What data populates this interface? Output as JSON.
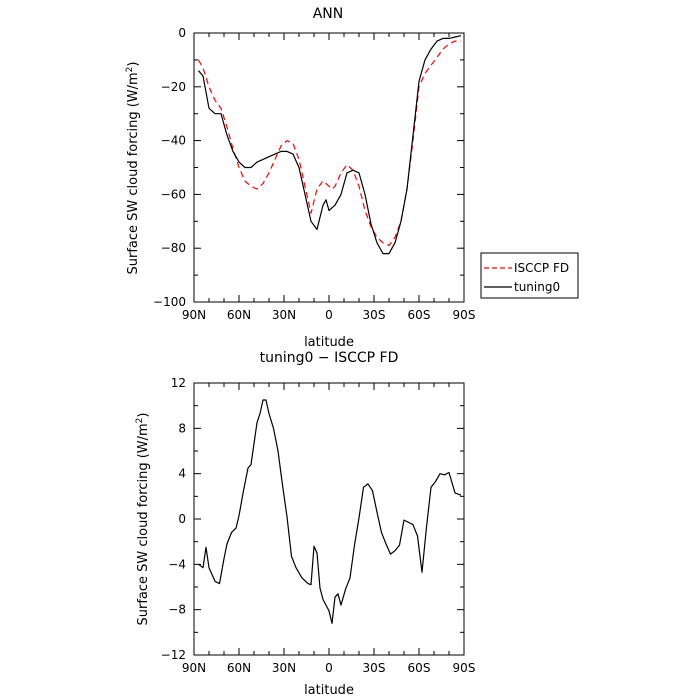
{
  "chart_data": [
    {
      "type": "line",
      "title": "ANN",
      "xlabel": "latitude",
      "ylabel": "Surface SW cloud forcing (W/m",
      "ylabel_superscript": "2",
      "ylabel_suffix": ")",
      "xlim": [
        90,
        -90
      ],
      "ylim": [
        -100,
        0
      ],
      "x_ticks": [
        90,
        60,
        30,
        0,
        -30,
        -60,
        -90
      ],
      "x_tick_labels": [
        "90N",
        "60N",
        "30N",
        "0",
        "30S",
        "60S",
        "90S"
      ],
      "y_ticks": [
        0,
        -20,
        -40,
        -60,
        -80,
        -100
      ],
      "y_tick_labels": [
        "0",
        "−20",
        "−40",
        "−60",
        "−80",
        "−100"
      ],
      "legend_position": "right",
      "series": [
        {
          "name": "ISCCP FD",
          "color": "#ff0000",
          "style": "dashed",
          "x": [
            87,
            84,
            80,
            76,
            72,
            68,
            64,
            60,
            56,
            52,
            48,
            44,
            40,
            36,
            32,
            28,
            24,
            20,
            16,
            12,
            8,
            4,
            2,
            0,
            -2,
            -4,
            -8,
            -12,
            -16,
            -20,
            -24,
            -28,
            -32,
            -36,
            -40,
            -44,
            -48,
            -52,
            -56,
            -60,
            -64,
            -68,
            -72,
            -76,
            -80,
            -84,
            -88
          ],
          "y": [
            -10,
            -13,
            -20,
            -25,
            -28,
            -35,
            -43,
            -50,
            -55,
            -57,
            -58,
            -56,
            -52,
            -47,
            -42,
            -40,
            -41,
            -47,
            -57,
            -67,
            -58,
            -55,
            -56,
            -57,
            -58,
            -57,
            -52,
            -49,
            -51,
            -57,
            -66,
            -72,
            -76,
            -78,
            -79,
            -76,
            -70,
            -58,
            -40,
            -20,
            -15,
            -12,
            -9,
            -6,
            -4,
            -3,
            -3
          ]
        },
        {
          "name": "tuning0",
          "color": "#000000",
          "style": "solid",
          "x": [
            87,
            84,
            80,
            76,
            72,
            68,
            64,
            60,
            56,
            52,
            48,
            44,
            40,
            36,
            32,
            28,
            24,
            20,
            16,
            12,
            8,
            4,
            2,
            0,
            -2,
            -4,
            -8,
            -12,
            -16,
            -20,
            -24,
            -28,
            -32,
            -36,
            -40,
            -44,
            -48,
            -52,
            -56,
            -60,
            -64,
            -68,
            -72,
            -76,
            -80,
            -84,
            -88
          ],
          "y": [
            -14,
            -16,
            -28,
            -30,
            -30,
            -38,
            -44,
            -48,
            -50,
            -50,
            -48,
            -47,
            -46,
            -45,
            -44,
            -44,
            -45,
            -50,
            -60,
            -70,
            -73,
            -64,
            -62,
            -66,
            -65,
            -64,
            -60,
            -52,
            -51,
            -52,
            -60,
            -71,
            -78,
            -82,
            -82,
            -78,
            -70,
            -58,
            -38,
            -18,
            -10,
            -6,
            -3,
            -2,
            -2,
            -1.5,
            -1
          ]
        }
      ]
    },
    {
      "type": "line",
      "title": "tuning0 − ISCCP FD",
      "xlabel": "latitude",
      "ylabel": "Surface SW cloud forcing (W/m",
      "ylabel_superscript": "2",
      "ylabel_suffix": ")",
      "xlim": [
        90,
        -90
      ],
      "ylim": [
        -12,
        12
      ],
      "x_ticks": [
        90,
        60,
        30,
        0,
        -30,
        -60,
        -90
      ],
      "x_tick_labels": [
        "90N",
        "60N",
        "30N",
        "0",
        "30S",
        "60S",
        "90S"
      ],
      "y_ticks": [
        12,
        8,
        4,
        0,
        -4,
        -8,
        -12
      ],
      "y_tick_labels": [
        "12",
        "8",
        "4",
        "0",
        "−4",
        "−8",
        "−12"
      ],
      "series": [
        {
          "color": "#000000",
          "style": "solid",
          "x": [
            87,
            84,
            82,
            80,
            76,
            73,
            70,
            68,
            65,
            62,
            60,
            57,
            54,
            52,
            48,
            46,
            44,
            42,
            40,
            37,
            34,
            31,
            28,
            25,
            22,
            18,
            14,
            12,
            10,
            8,
            6,
            4,
            2,
            0,
            -2,
            -4,
            -6,
            -8,
            -11,
            -14,
            -17,
            -20,
            -23,
            -26,
            -29,
            -32,
            -35,
            -38,
            -41,
            -44,
            -47,
            -50,
            -53,
            -56,
            -59,
            -62,
            -65,
            -68,
            -71,
            -74,
            -77,
            -80,
            -84,
            -88
          ],
          "y": [
            -4,
            -4.3,
            -2.5,
            -4.3,
            -5.5,
            -5.7,
            -3.5,
            -2.2,
            -1.2,
            -0.8,
            0.3,
            2.5,
            4.5,
            4.8,
            8.5,
            9.3,
            10.5,
            10.5,
            9.3,
            8,
            6,
            3,
            0.2,
            -3.3,
            -4.3,
            -5.2,
            -5.7,
            -5.8,
            -2.4,
            -3.0,
            -6.1,
            -7.1,
            -7.6,
            -8.1,
            -9.2,
            -6.9,
            -6.6,
            -7.6,
            -6.2,
            -5.2,
            -2.3,
            0.1,
            2.8,
            3.1,
            2.5,
            0.6,
            -1.2,
            -2.2,
            -3.1,
            -2.8,
            -2.3,
            -0.1,
            -0.3,
            -0.5,
            -1.5,
            -4.7,
            -0.7,
            2.8,
            3.3,
            4.0,
            3.9,
            4.1,
            2.3,
            2.1
          ]
        }
      ]
    }
  ]
}
